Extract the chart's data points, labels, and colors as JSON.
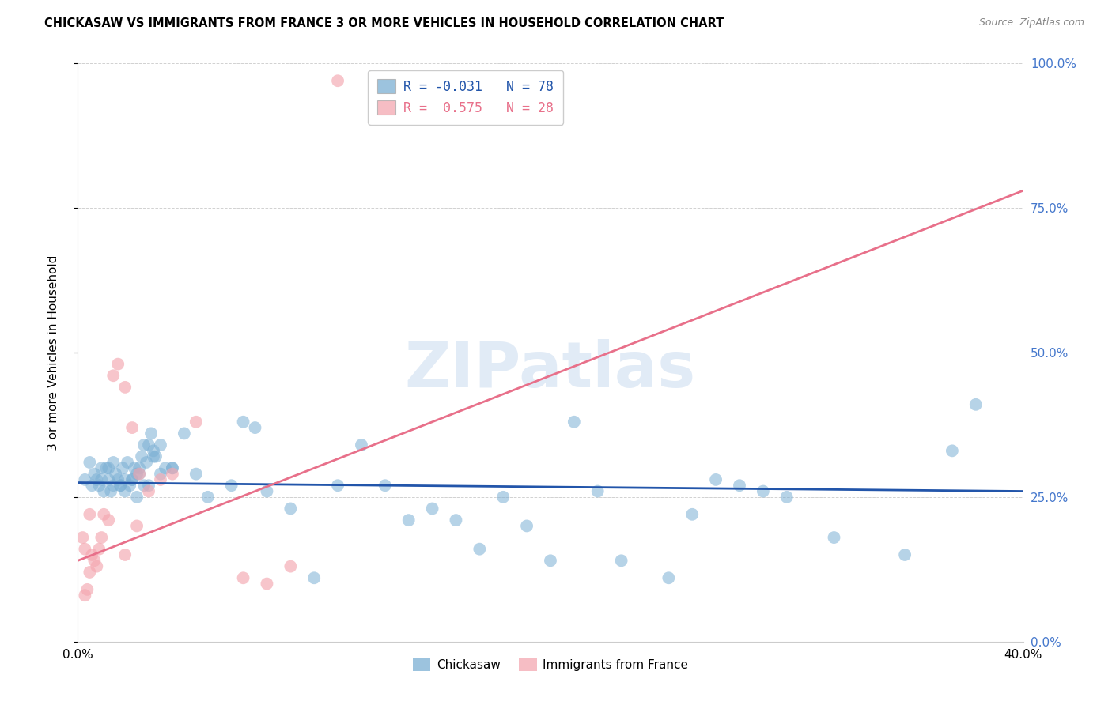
{
  "title": "CHICKASAW VS IMMIGRANTS FROM FRANCE 3 OR MORE VEHICLES IN HOUSEHOLD CORRELATION CHART",
  "source": "Source: ZipAtlas.com",
  "ylabel": "3 or more Vehicles in Household",
  "legend_blue_label": "Chickasaw",
  "legend_pink_label": "Immigrants from France",
  "legend_R_blue": "R = -0.031",
  "legend_N_blue": "N = 78",
  "legend_R_pink": "R =  0.575",
  "legend_N_pink": "N = 28",
  "blue_color": "#7BAFD4",
  "pink_color": "#F4A7B0",
  "line_blue_color": "#2255AA",
  "line_pink_color": "#E8708A",
  "watermark": "ZIPatlas",
  "xlim": [
    0,
    40
  ],
  "ylim": [
    0,
    100
  ],
  "ytick_vals": [
    0,
    25,
    50,
    75,
    100
  ],
  "blue_line_x": [
    0,
    40
  ],
  "blue_line_y": [
    27.5,
    26.0
  ],
  "pink_line_x": [
    0,
    40
  ],
  "pink_line_y": [
    14,
    78
  ],
  "blue_scatter_x": [
    0.3,
    0.5,
    0.6,
    0.7,
    0.8,
    0.9,
    1.0,
    1.0,
    1.1,
    1.2,
    1.3,
    1.4,
    1.5,
    1.5,
    1.6,
    1.7,
    1.8,
    1.9,
    2.0,
    2.0,
    2.1,
    2.2,
    2.3,
    2.4,
    2.5,
    2.6,
    2.7,
    2.8,
    2.9,
    3.0,
    3.1,
    3.2,
    3.3,
    3.5,
    3.7,
    4.0,
    4.5,
    5.0,
    5.5,
    6.5,
    7.0,
    7.5,
    8.0,
    9.0,
    10.0,
    11.0,
    12.0,
    13.0,
    14.0,
    15.0,
    16.0,
    17.0,
    18.0,
    19.0,
    20.0,
    21.0,
    22.0,
    23.0,
    25.0,
    26.0,
    27.0,
    28.0,
    29.0,
    30.0,
    32.0,
    35.0,
    37.0,
    38.0,
    2.5,
    3.0,
    3.5,
    4.0,
    2.3,
    2.6,
    2.8,
    3.2,
    1.8,
    1.3
  ],
  "blue_scatter_y": [
    28,
    31,
    27,
    29,
    28,
    27,
    30,
    28,
    26,
    30,
    28,
    26,
    31,
    27,
    29,
    28,
    27,
    30,
    28,
    26,
    31,
    27,
    28,
    30,
    29,
    29,
    32,
    34,
    31,
    34,
    36,
    33,
    32,
    34,
    30,
    30,
    36,
    29,
    25,
    27,
    38,
    37,
    26,
    23,
    11,
    27,
    34,
    27,
    21,
    23,
    21,
    16,
    25,
    20,
    14,
    38,
    26,
    14,
    11,
    22,
    28,
    27,
    26,
    25,
    18,
    15,
    33,
    41,
    25,
    27,
    29,
    30,
    28,
    30,
    27,
    32,
    27,
    30
  ],
  "pink_scatter_x": [
    0.2,
    0.3,
    0.4,
    0.5,
    0.6,
    0.7,
    0.8,
    0.9,
    1.0,
    1.1,
    1.3,
    1.5,
    1.7,
    2.0,
    2.3,
    2.6,
    3.0,
    3.5,
    4.0,
    5.0,
    7.0,
    8.0,
    9.0,
    11.0,
    2.0,
    2.5,
    0.5,
    0.3
  ],
  "pink_scatter_y": [
    18,
    16,
    9,
    12,
    15,
    14,
    13,
    16,
    18,
    22,
    21,
    46,
    48,
    44,
    37,
    29,
    26,
    28,
    29,
    38,
    11,
    10,
    13,
    97,
    15,
    20,
    22,
    8
  ]
}
